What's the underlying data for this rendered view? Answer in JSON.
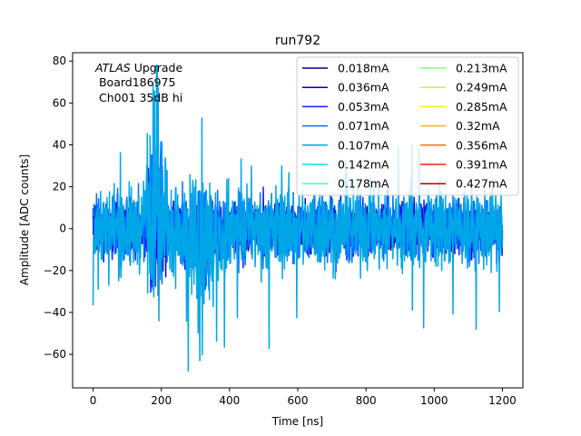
{
  "chart_data": {
    "type": "line",
    "title": "run792",
    "xlabel": "Time [ns]",
    "ylabel": "Amplitude [ADC counts]",
    "xlim": [
      -60,
      1260
    ],
    "ylim": [
      -76,
      84
    ],
    "xticks": [
      0,
      200,
      400,
      600,
      800,
      1000,
      1200
    ],
    "yticks": [
      -60,
      -40,
      -20,
      0,
      20,
      40,
      60,
      80
    ],
    "grid": false,
    "legend_placement": "top-right",
    "legend_columns": 2,
    "annotations": {
      "line1_italic": "ATLAS",
      "line1_rest": " Upgrade",
      "line2": " Board186975",
      "line3": " Ch001 35dB hi"
    },
    "series": [
      {
        "name": "0.018mA",
        "color": "#00008f",
        "amplitude": 8,
        "burst_amp": 14,
        "extra_amp": 4
      },
      {
        "name": "0.036mA",
        "color": "#0000cc",
        "amplitude": 10,
        "burst_amp": 26,
        "extra_amp": 6
      },
      {
        "name": "0.053mA",
        "color": "#0a1fff",
        "amplitude": 12,
        "burst_amp": 32,
        "extra_amp": 8
      },
      {
        "name": "0.071mA",
        "color": "#0070ff",
        "amplitude": 14,
        "burst_amp": 38,
        "extra_amp": 10
      },
      {
        "name": "0.107mA",
        "color": "#00a6e6",
        "amplitude": 18,
        "burst_amp": 46,
        "extra_amp": 24
      },
      {
        "name": "0.142mA",
        "color": "#00e6e6",
        "amplitude": 0,
        "burst_amp": 0,
        "extra_amp": 0
      },
      {
        "name": "0.178mA",
        "color": "#40ffb0",
        "amplitude": 0,
        "burst_amp": 0,
        "extra_amp": 0
      },
      {
        "name": "0.213mA",
        "color": "#80ff80",
        "amplitude": 0,
        "burst_amp": 0,
        "extra_amp": 0
      },
      {
        "name": "0.249mA",
        "color": "#b0ff40",
        "amplitude": 0,
        "burst_amp": 0,
        "extra_amp": 0
      },
      {
        "name": "0.285mA",
        "color": "#ffee00",
        "amplitude": 0,
        "burst_amp": 0,
        "extra_amp": 0
      },
      {
        "name": "0.32mA",
        "color": "#ffb000",
        "amplitude": 0,
        "burst_amp": 0,
        "extra_amp": 0
      },
      {
        "name": "0.356mA",
        "color": "#ff7000",
        "amplitude": 0,
        "burst_amp": 0,
        "extra_amp": 0
      },
      {
        "name": "0.391mA",
        "color": "#ee2000",
        "amplitude": 0,
        "burst_amp": 0,
        "extra_amp": 0
      },
      {
        "name": "0.427mA",
        "color": "#b00000",
        "amplitude": 0,
        "burst_amp": 0,
        "extra_amp": 0
      }
    ]
  }
}
